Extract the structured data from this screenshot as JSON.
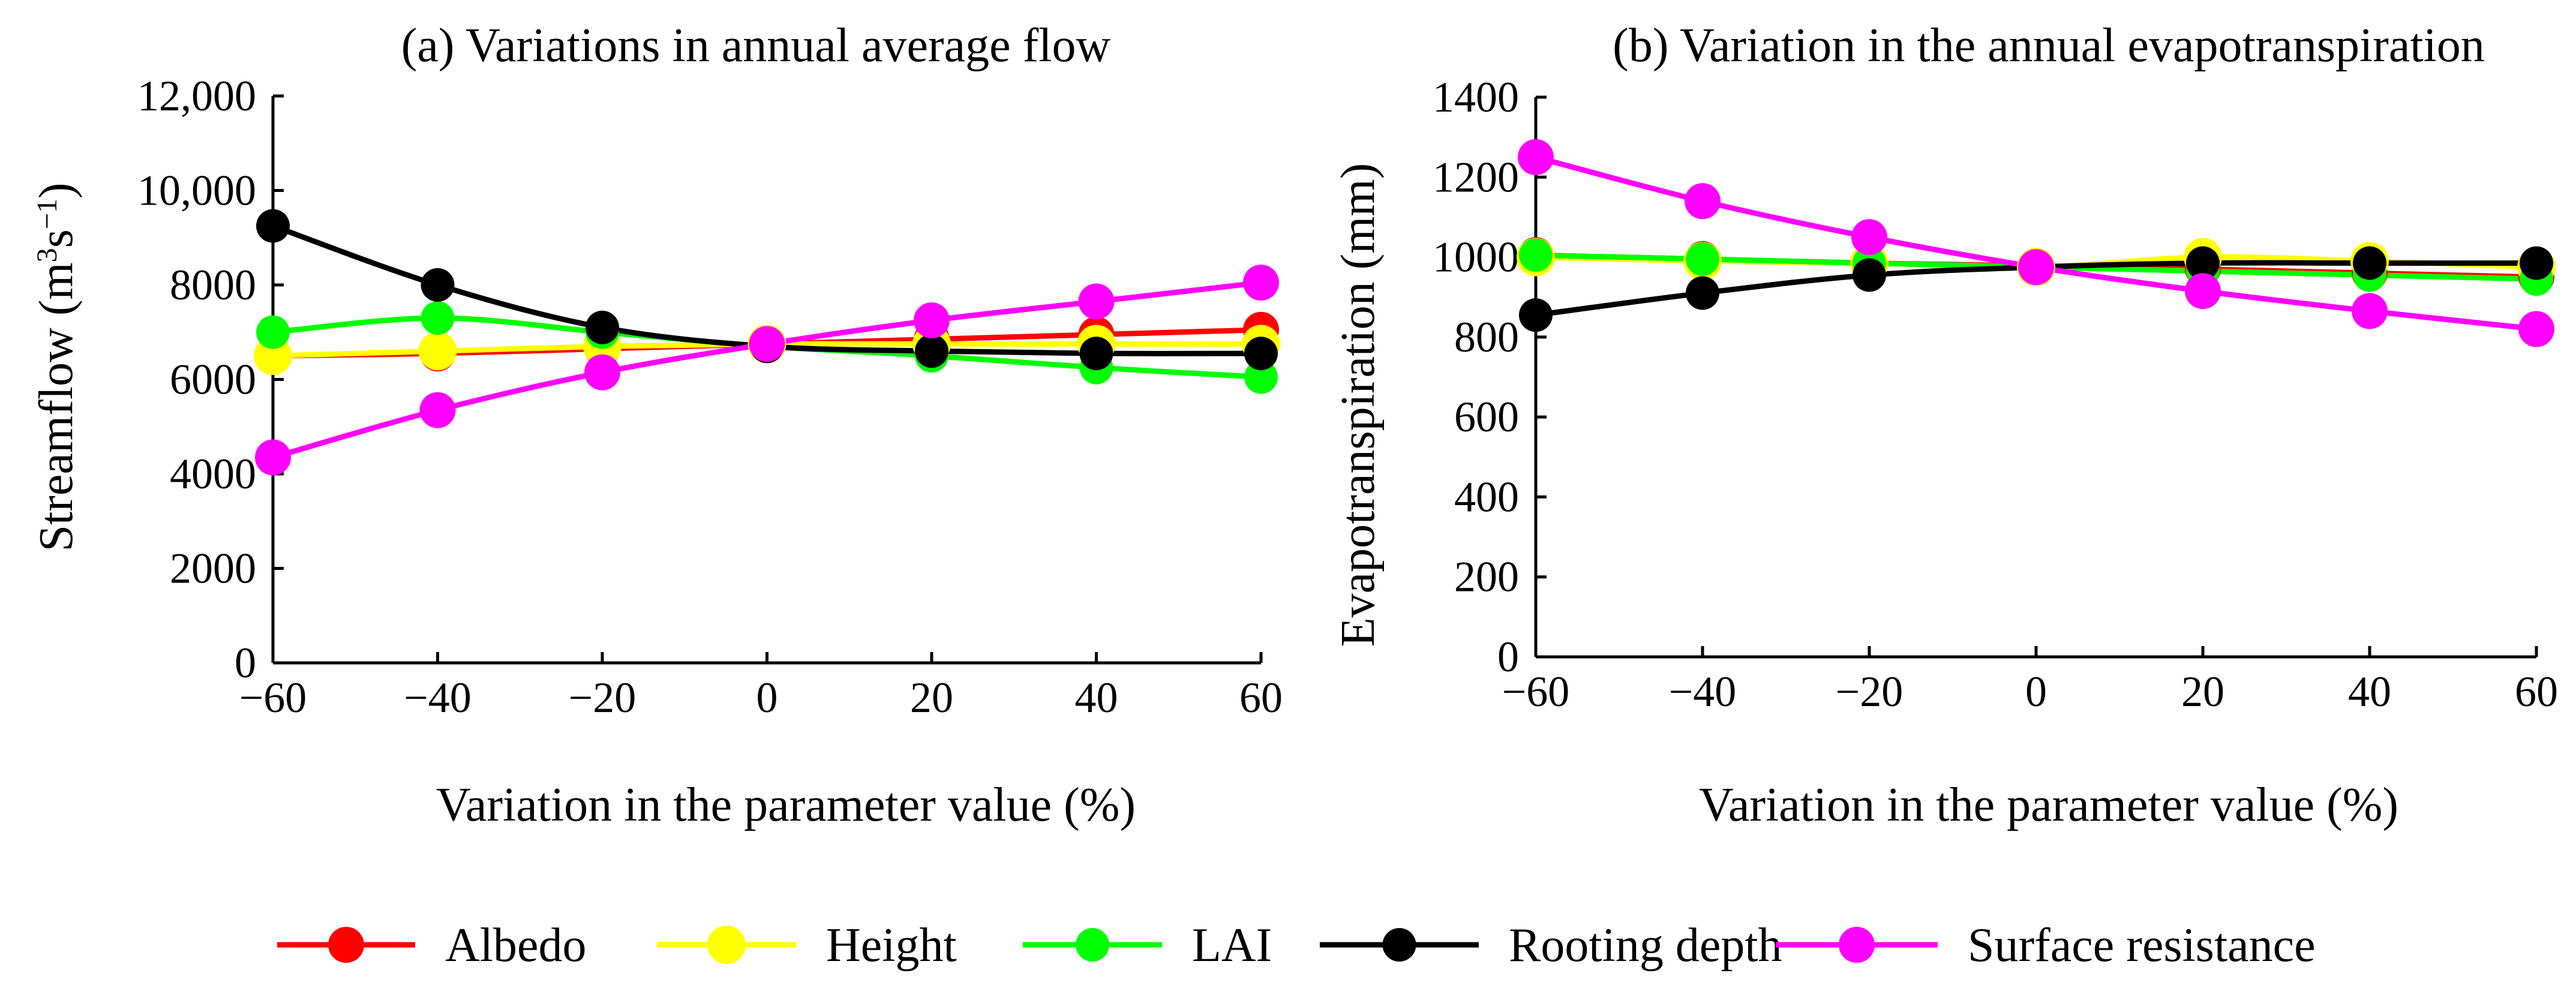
{
  "chart_data": [
    {
      "type": "line",
      "title": "(a) Variations in annual average flow",
      "xlabel": "Variation in the parameter value (%)",
      "ylabel_main": "Streamflow (m",
      "ylabel_sup1": "3",
      "ylabel_mid": "s",
      "ylabel_sup2": "−1",
      "ylabel_end": ")",
      "xlim": [
        -60,
        60
      ],
      "ylim": [
        0,
        12000
      ],
      "x": [
        -60,
        -40,
        -20,
        0,
        20,
        40,
        60
      ],
      "x_tick_labels": [
        "−60",
        "−40",
        "−20",
        "0",
        "20",
        "40",
        "60"
      ],
      "y_ticks": [
        0,
        2000,
        4000,
        6000,
        8000,
        10000,
        12000
      ],
      "y_tick_labels": [
        "0",
        "2000",
        "4000",
        "6000",
        "8000",
        "10,000",
        "12,000"
      ],
      "series": [
        {
          "name": "Albedo",
          "values": [
            6500,
            6550,
            6650,
            6750,
            6850,
            6950,
            7050
          ]
        },
        {
          "name": "Height",
          "values": [
            6500,
            6600,
            6700,
            6750,
            6750,
            6750,
            6750
          ]
        },
        {
          "name": "LAI",
          "values": [
            7000,
            7300,
            7000,
            6700,
            6500,
            6250,
            6050
          ]
        },
        {
          "name": "Rooting depth",
          "values": [
            9250,
            8000,
            7100,
            6700,
            6600,
            6550,
            6550
          ]
        },
        {
          "name": "Surface resistance",
          "values": [
            4350,
            5350,
            6150,
            6750,
            7250,
            7650,
            8050
          ]
        }
      ]
    },
    {
      "type": "line",
      "title": "(b) Variation in the annual evapotranspiration",
      "xlabel": "Variation in the parameter value (%)",
      "ylabel": "Evapotranspiration (mm)",
      "xlim": [
        -60,
        60
      ],
      "ylim": [
        0,
        1400
      ],
      "x": [
        -60,
        -40,
        -20,
        0,
        20,
        40,
        60
      ],
      "x_tick_labels": [
        "−60",
        "−40",
        "−20",
        "0",
        "20",
        "40",
        "60"
      ],
      "y_ticks": [
        0,
        200,
        400,
        600,
        800,
        1000,
        1200,
        1400
      ],
      "y_tick_labels": [
        "0",
        "200",
        "400",
        "600",
        "800",
        "1000",
        "1200",
        "1400"
      ],
      "series": [
        {
          "name": "Albedo",
          "values": [
            1005,
            995,
            985,
            978,
            970,
            960,
            950
          ]
        },
        {
          "name": "Height",
          "values": [
            1000,
            990,
            985,
            975,
            1000,
            990,
            975
          ]
        },
        {
          "name": "LAI",
          "values": [
            1005,
            995,
            985,
            975,
            965,
            955,
            945
          ]
        },
        {
          "name": "Rooting depth",
          "values": [
            855,
            910,
            955,
            975,
            985,
            985,
            985
          ]
        },
        {
          "name": "Surface resistance",
          "values": [
            1250,
            1140,
            1050,
            975,
            915,
            865,
            820
          ]
        }
      ]
    }
  ],
  "legend": {
    "placement": "bottom",
    "items": [
      {
        "label": "Albedo",
        "color": "#ff0000",
        "marker_color": "#ff0000"
      },
      {
        "label": "Height",
        "color": "#ffff00",
        "marker_color": "#ffff00"
      },
      {
        "label": "LAI",
        "color": "#00ff00",
        "marker_color": "#00ff00"
      },
      {
        "label": "Rooting depth",
        "color": "#000000",
        "marker_color": "#000000"
      },
      {
        "label": "Surface resistance",
        "color": "#ff00ff",
        "marker_color": "#ff00ff"
      }
    ]
  }
}
